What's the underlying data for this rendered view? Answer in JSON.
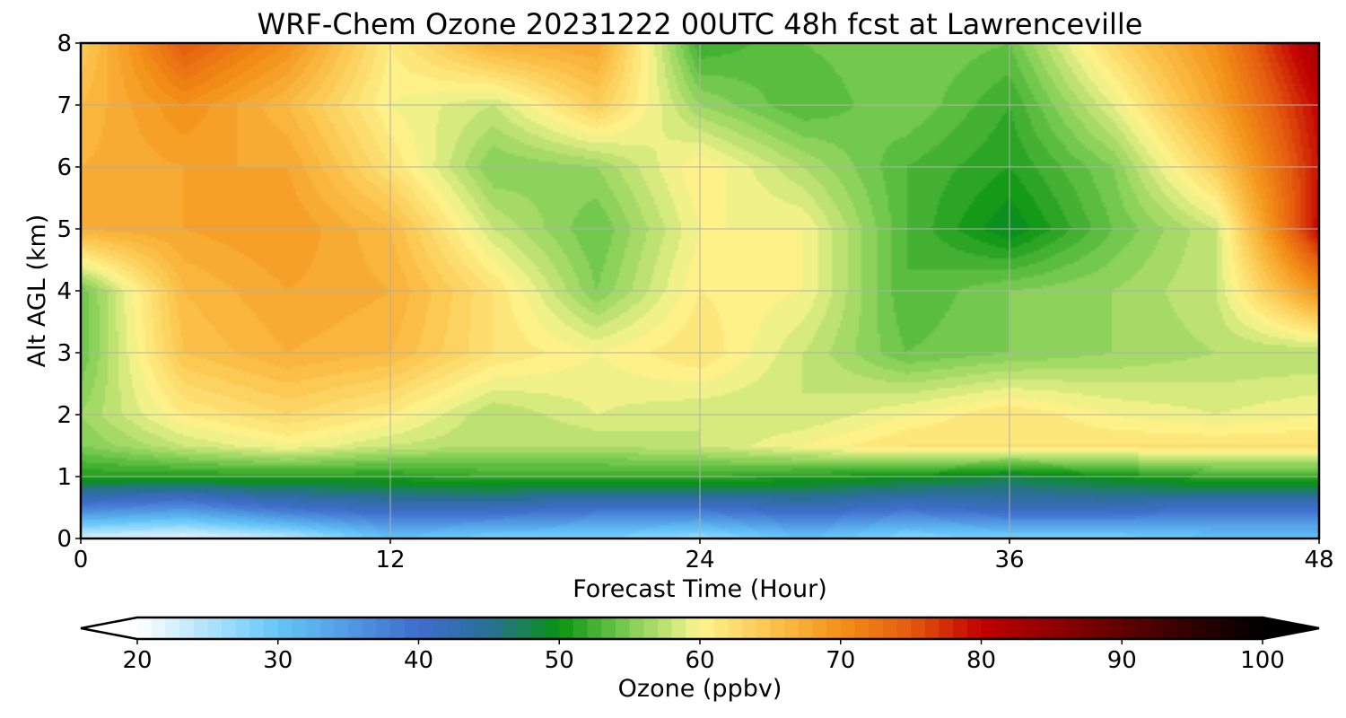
{
  "chart_data": {
    "type": "heatmap",
    "title": "WRF-Chem Ozone  20231222 00UTC 48h fcst at Lawrenceville",
    "xlabel": "Forecast Time (Hour)",
    "ylabel": "Alt AGL (km)",
    "xlim": [
      0,
      48
    ],
    "ylim": [
      0,
      8
    ],
    "xticks": [
      0,
      12,
      24,
      36,
      48
    ],
    "yticks": [
      0,
      1,
      2,
      3,
      4,
      5,
      6,
      7,
      8
    ],
    "grid": true,
    "x": [
      0,
      4,
      8,
      12,
      16,
      20,
      24,
      28,
      32,
      36,
      40,
      44,
      48
    ],
    "y": [
      0,
      0.5,
      1,
      1.5,
      2,
      3,
      4,
      5,
      6,
      7,
      8
    ],
    "z": [
      [
        22,
        21,
        24,
        30,
        28,
        28,
        26,
        30,
        27,
        28,
        28,
        30,
        30
      ],
      [
        38,
        36,
        40,
        42,
        42,
        40,
        40,
        42,
        40,
        42,
        42,
        40,
        40
      ],
      [
        51,
        51,
        51,
        51,
        52,
        52,
        52,
        51,
        50,
        48,
        50,
        52,
        52
      ],
      [
        55,
        58,
        60,
        58,
        57,
        57,
        58,
        60,
        62,
        62,
        62,
        62,
        62
      ],
      [
        56,
        61,
        63,
        61,
        57,
        59,
        58,
        58,
        60,
        62,
        60,
        59,
        60
      ],
      [
        54,
        65,
        67,
        66,
        62,
        60,
        62,
        58,
        54,
        55,
        56,
        57,
        57
      ],
      [
        54,
        66,
        68,
        67,
        62,
        55,
        61,
        60,
        53,
        55,
        56,
        58,
        70
      ],
      [
        67,
        68,
        69,
        66,
        58,
        54,
        60,
        60,
        53,
        49,
        54,
        58,
        80
      ],
      [
        67,
        68,
        68,
        62,
        55,
        56,
        61,
        57,
        53,
        51,
        55,
        64,
        79
      ],
      [
        66,
        70,
        66,
        60,
        58,
        64,
        56,
        53,
        55,
        52,
        59,
        68,
        80
      ],
      [
        64,
        75,
        70,
        61,
        67,
        68,
        52,
        54,
        55,
        54,
        63,
        70,
        83
      ]
    ],
    "colorbar": {
      "label": "Ozone  (ppbv)",
      "min": 20,
      "max": 100,
      "ticks": [
        20,
        30,
        40,
        50,
        60,
        70,
        80,
        90,
        100
      ],
      "extend": "both",
      "stops": [
        [
          20,
          "#ffffff"
        ],
        [
          30,
          "#64c6f8"
        ],
        [
          40,
          "#3f6dcd"
        ],
        [
          45,
          "#2a6f96"
        ],
        [
          50,
          "#089410"
        ],
        [
          55,
          "#7fce55"
        ],
        [
          60,
          "#fdf68f"
        ],
        [
          65,
          "#fcc44c"
        ],
        [
          70,
          "#f39117"
        ],
        [
          75,
          "#e45a0e"
        ],
        [
          80,
          "#c10000"
        ],
        [
          90,
          "#600000"
        ],
        [
          100,
          "#000000"
        ]
      ]
    }
  }
}
